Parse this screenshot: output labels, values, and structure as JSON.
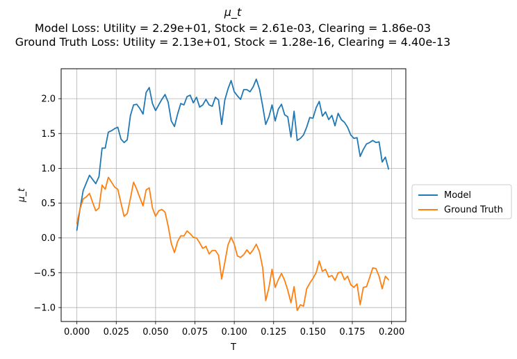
{
  "chart_data": {
    "type": "line",
    "title": "μ_t",
    "subtitle_lines": [
      "Model Loss: Utility = 2.29e+01, Stock = 2.61e-03, Clearing = 1.86e-03",
      "Ground Truth Loss: Utility = 2.13e+01, Stock = 1.28e-16, Clearing = 4.40e-13"
    ],
    "xlabel": "T",
    "ylabel": "μ_t",
    "xlim": [
      -0.01,
      0.209
    ],
    "ylim": [
      -1.2,
      2.43
    ],
    "xticks": [
      0.0,
      0.025,
      0.05,
      0.075,
      0.1,
      0.125,
      0.15,
      0.175,
      0.2
    ],
    "xtick_labels": [
      "0.000",
      "0.025",
      "0.050",
      "0.075",
      "0.100",
      "0.125",
      "0.150",
      "0.175",
      "0.200"
    ],
    "yticks": [
      -1.0,
      -0.5,
      0.0,
      0.5,
      1.0,
      1.5,
      2.0
    ],
    "ytick_labels": [
      "−1.0",
      "−0.5",
      "0.0",
      "0.5",
      "1.0",
      "1.5",
      "2.0"
    ],
    "grid": true,
    "legend_position": "center-right outside",
    "x": [
      0.0,
      0.002,
      0.004,
      0.006,
      0.008,
      0.01,
      0.012,
      0.014,
      0.016,
      0.018,
      0.02,
      0.022,
      0.024,
      0.026,
      0.028,
      0.03,
      0.032,
      0.034,
      0.036,
      0.038,
      0.04,
      0.042,
      0.044,
      0.046,
      0.048,
      0.05,
      0.052,
      0.054,
      0.056,
      0.058,
      0.06,
      0.062,
      0.064,
      0.066,
      0.068,
      0.07,
      0.072,
      0.074,
      0.076,
      0.078,
      0.08,
      0.082,
      0.084,
      0.086,
      0.088,
      0.09,
      0.092,
      0.094,
      0.096,
      0.098,
      0.1,
      0.102,
      0.104,
      0.106,
      0.108,
      0.11,
      0.112,
      0.114,
      0.116,
      0.118,
      0.12,
      0.122,
      0.124,
      0.126,
      0.128,
      0.13,
      0.132,
      0.134,
      0.136,
      0.138,
      0.14,
      0.142,
      0.144,
      0.146,
      0.148,
      0.15,
      0.152,
      0.154,
      0.156,
      0.158,
      0.16,
      0.162,
      0.164,
      0.166,
      0.168,
      0.17,
      0.172,
      0.174,
      0.176,
      0.178,
      0.18,
      0.182,
      0.184,
      0.186,
      0.188,
      0.19,
      0.192,
      0.194,
      0.196,
      0.198
    ],
    "series": [
      {
        "name": "Model",
        "color": "#1f77b4",
        "values": [
          0.11,
          0.42,
          0.68,
          0.79,
          0.9,
          0.84,
          0.78,
          0.88,
          1.29,
          1.29,
          1.52,
          1.54,
          1.57,
          1.59,
          1.42,
          1.37,
          1.41,
          1.76,
          1.91,
          1.92,
          1.86,
          1.78,
          2.09,
          2.16,
          1.93,
          1.83,
          1.91,
          1.99,
          2.06,
          1.95,
          1.68,
          1.6,
          1.78,
          1.93,
          1.91,
          2.03,
          2.05,
          1.94,
          2.02,
          1.88,
          1.91,
          1.99,
          1.91,
          1.89,
          2.02,
          1.98,
          1.63,
          1.98,
          2.14,
          2.26,
          2.1,
          2.04,
          1.99,
          2.13,
          2.13,
          2.1,
          2.17,
          2.28,
          2.14,
          1.9,
          1.63,
          1.74,
          1.91,
          1.68,
          1.85,
          1.92,
          1.77,
          1.74,
          1.45,
          1.82,
          1.4,
          1.43,
          1.48,
          1.59,
          1.73,
          1.72,
          1.87,
          1.96,
          1.75,
          1.81,
          1.7,
          1.76,
          1.61,
          1.79,
          1.7,
          1.66,
          1.59,
          1.48,
          1.43,
          1.44,
          1.17,
          1.27,
          1.35,
          1.37,
          1.4,
          1.37,
          1.38,
          1.09,
          1.16,
          0.99
        ]
      },
      {
        "name": "Ground Truth",
        "color": "#ff7f0e",
        "values": [
          0.21,
          0.42,
          0.56,
          0.59,
          0.64,
          0.51,
          0.39,
          0.43,
          0.76,
          0.7,
          0.87,
          0.8,
          0.73,
          0.7,
          0.5,
          0.31,
          0.35,
          0.57,
          0.8,
          0.7,
          0.58,
          0.46,
          0.69,
          0.72,
          0.43,
          0.31,
          0.39,
          0.41,
          0.37,
          0.17,
          -0.08,
          -0.21,
          -0.05,
          0.03,
          0.03,
          0.1,
          0.06,
          0.01,
          0.0,
          -0.07,
          -0.15,
          -0.12,
          -0.23,
          -0.18,
          -0.18,
          -0.25,
          -0.59,
          -0.35,
          -0.1,
          0.01,
          -0.09,
          -0.26,
          -0.28,
          -0.24,
          -0.17,
          -0.23,
          -0.17,
          -0.09,
          -0.2,
          -0.42,
          -0.9,
          -0.71,
          -0.45,
          -0.71,
          -0.6,
          -0.51,
          -0.61,
          -0.75,
          -0.93,
          -0.7,
          -1.04,
          -0.96,
          -0.98,
          -0.73,
          -0.65,
          -0.58,
          -0.5,
          -0.33,
          -0.48,
          -0.45,
          -0.56,
          -0.54,
          -0.61,
          -0.5,
          -0.49,
          -0.6,
          -0.55,
          -0.67,
          -0.71,
          -0.66,
          -0.96,
          -0.71,
          -0.7,
          -0.57,
          -0.43,
          -0.44,
          -0.55,
          -0.73,
          -0.55,
          -0.6
        ]
      }
    ]
  }
}
